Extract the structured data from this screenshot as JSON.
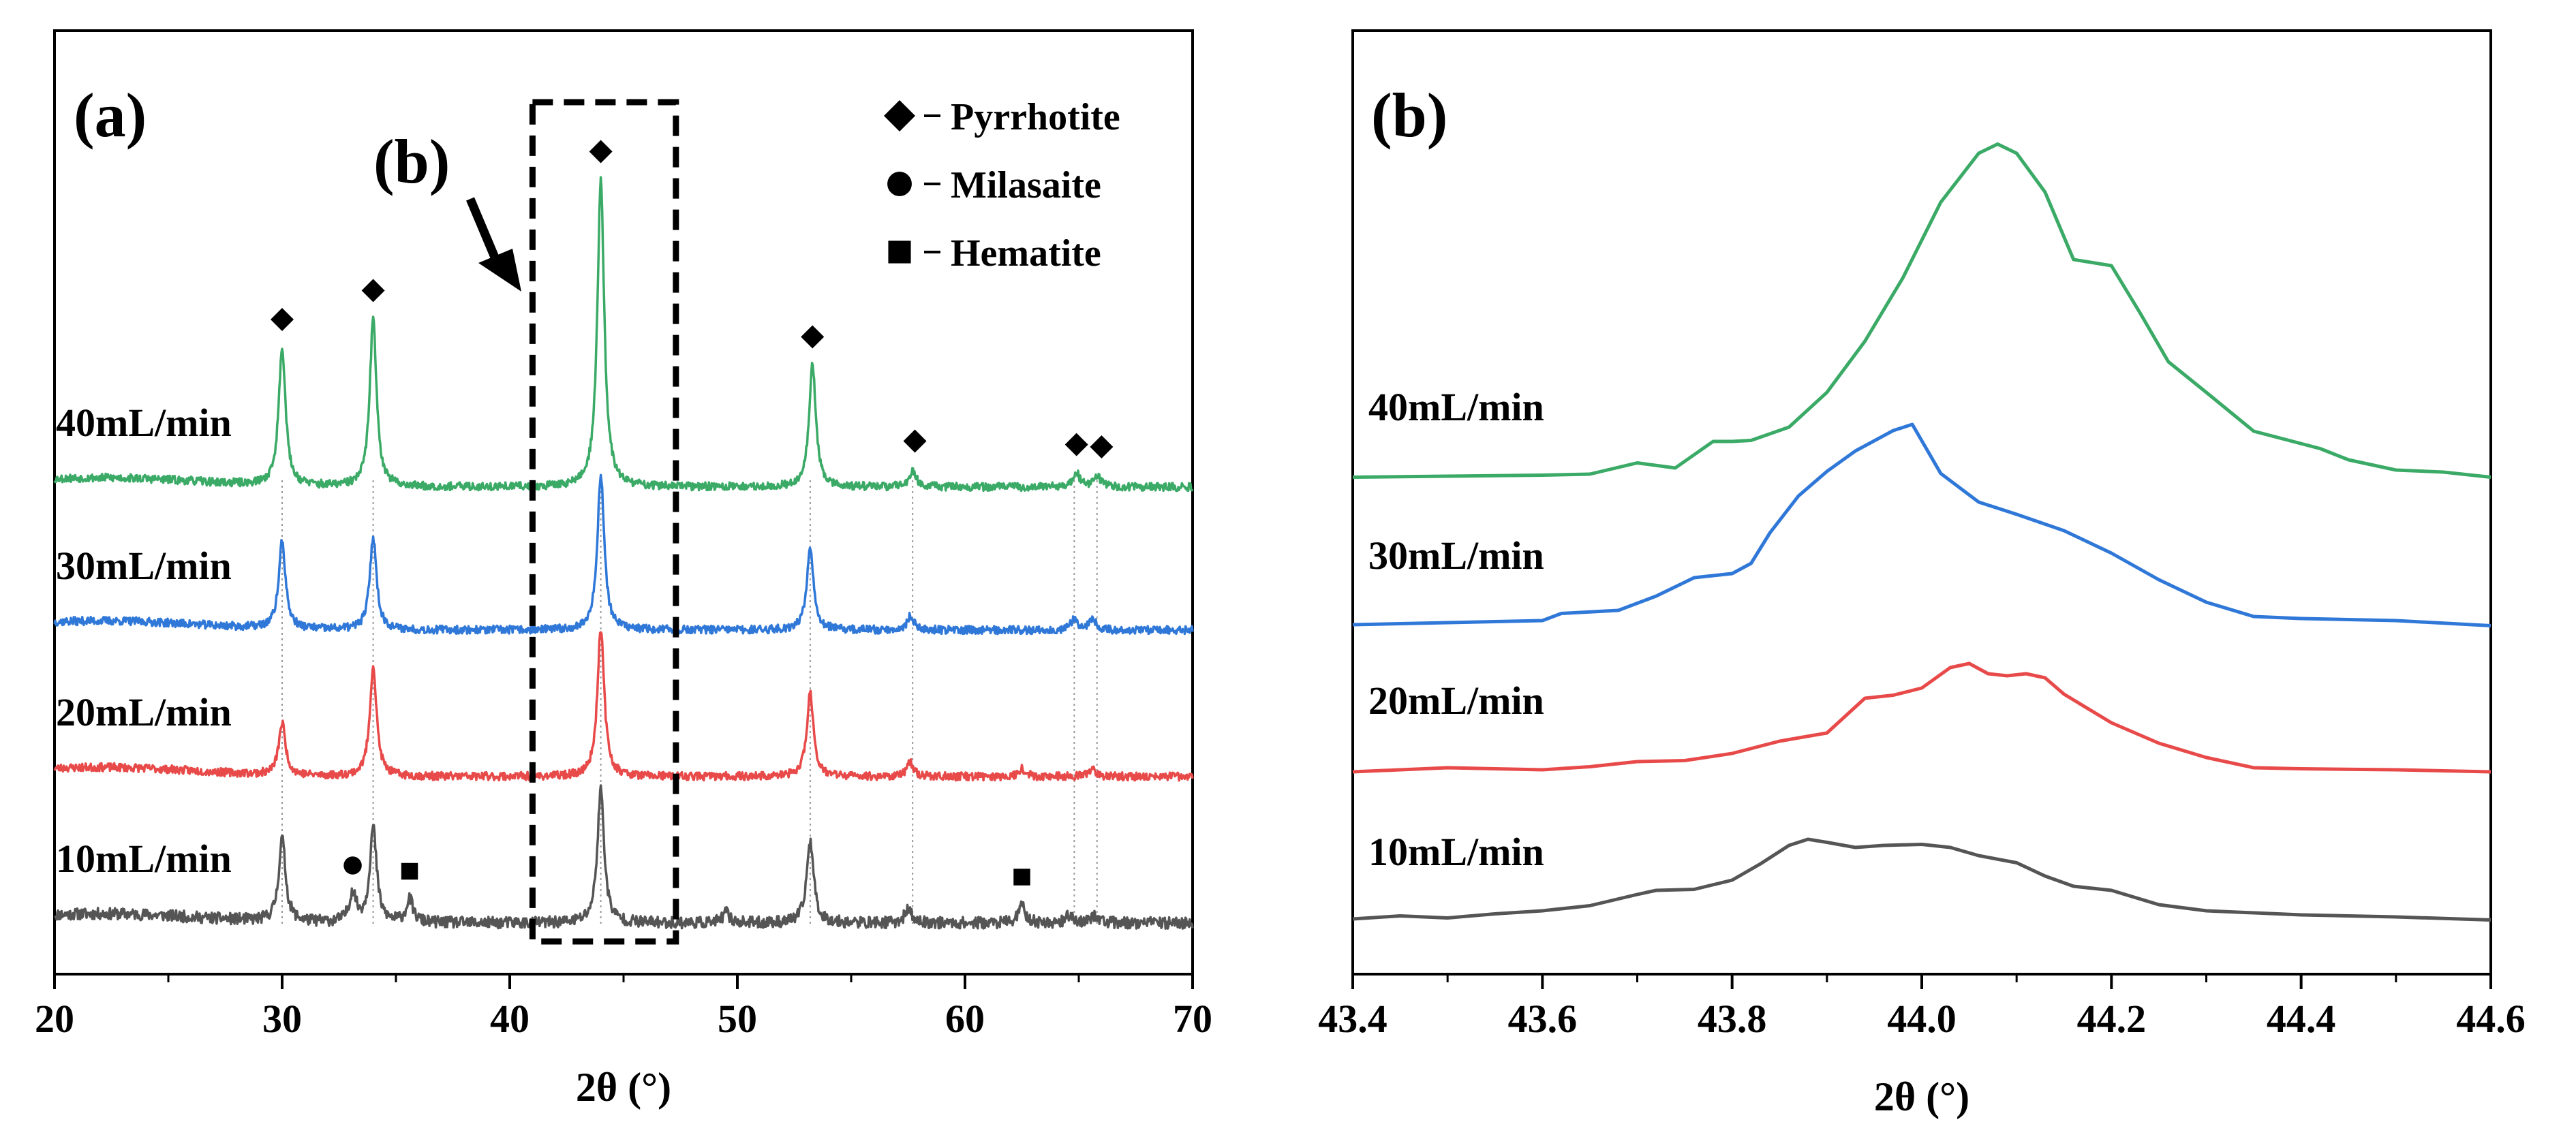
{
  "chart_data": [
    {
      "panel": "(a)",
      "type": "line",
      "xlabel": "2θ (°)",
      "ylabel": "",
      "xlim": [
        20,
        70
      ],
      "xticks": [
        20,
        30,
        40,
        50,
        60,
        70
      ],
      "inset_label": "(b)",
      "inset_box_x": [
        41,
        47.3
      ],
      "legend": [
        {
          "marker": "diamond",
          "label": "Pyrrhotite"
        },
        {
          "marker": "circle",
          "label": "Milasaite"
        },
        {
          "marker": "square",
          "label": "Hematite"
        }
      ],
      "pyrrhotite_peaks": [
        30.0,
        34.0,
        44.0,
        53.2,
        57.7,
        64.8,
        65.8
      ],
      "series": [
        {
          "name": "10mL/min",
          "color": "#555555",
          "baseline": 0,
          "noise": 0.1,
          "seed": 11,
          "peaks": [
            [
              30.0,
              0.72
            ],
            [
              33.1,
              0.25
            ],
            [
              34.0,
              0.82
            ],
            [
              35.6,
              0.2
            ],
            [
              44.0,
              1.15
            ],
            [
              49.5,
              0.09
            ],
            [
              53.2,
              0.72
            ],
            [
              57.5,
              0.12
            ],
            [
              62.5,
              0.15
            ],
            [
              64.6,
              0.07
            ],
            [
              65.7,
              0.07
            ]
          ],
          "markers": [
            {
              "x": 33.1,
              "symbol": "circle"
            },
            {
              "x": 35.6,
              "symbol": "square"
            },
            {
              "x": 62.5,
              "symbol": "square"
            }
          ]
        },
        {
          "name": "20mL/min",
          "color": "#e84a4a",
          "baseline": 1,
          "noise": 0.07,
          "seed": 23,
          "peaks": [
            [
              30.0,
              0.45
            ],
            [
              34.0,
              0.95
            ],
            [
              44.0,
              1.28
            ],
            [
              53.2,
              0.72
            ],
            [
              57.6,
              0.12
            ],
            [
              62.5,
              0.07
            ],
            [
              65.6,
              0.07
            ]
          ],
          "markers": []
        },
        {
          "name": "30mL/min",
          "color": "#2f78d8",
          "baseline": 2,
          "noise": 0.07,
          "seed": 37,
          "peaks": [
            [
              30.0,
              0.75
            ],
            [
              34.0,
              0.8
            ],
            [
              44.0,
              1.35
            ],
            [
              53.2,
              0.72
            ],
            [
              57.6,
              0.12
            ],
            [
              64.8,
              0.1
            ],
            [
              65.6,
              0.1
            ]
          ],
          "markers": []
        },
        {
          "name": "40mL/min",
          "color": "#3aaa66",
          "baseline": 3,
          "noise": 0.07,
          "seed": 53,
          "peaks": [
            [
              30.0,
              1.2
            ],
            [
              34.0,
              1.45
            ],
            [
              44.0,
              2.65
            ],
            [
              53.3,
              1.05
            ],
            [
              57.7,
              0.15
            ],
            [
              64.9,
              0.12
            ],
            [
              65.8,
              0.1
            ]
          ],
          "markers": [
            {
              "x": 30.0,
              "symbol": "diamond"
            },
            {
              "x": 34.0,
              "symbol": "diamond"
            },
            {
              "x": 44.0,
              "symbol": "diamond"
            },
            {
              "x": 53.3,
              "symbol": "diamond"
            },
            {
              "x": 57.8,
              "symbol": "diamond"
            },
            {
              "x": 64.9,
              "symbol": "diamond"
            },
            {
              "x": 66.0,
              "symbol": "diamond"
            }
          ]
        }
      ]
    },
    {
      "panel": "(b)",
      "type": "line",
      "xlabel": "2θ (°)",
      "ylabel": "",
      "xlim": [
        43.4,
        44.6
      ],
      "xticks": [
        43.4,
        43.6,
        43.8,
        44.0,
        44.2,
        44.4,
        44.6
      ],
      "series": [
        {
          "name": "10mL/min",
          "color": "#555555",
          "baseline": 0,
          "x": [
            43.4,
            43.45,
            43.5,
            43.55,
            43.6,
            43.65,
            43.7,
            43.72,
            43.76,
            43.8,
            43.83,
            43.86,
            43.88,
            43.9,
            43.93,
            43.96,
            44.0,
            44.03,
            44.06,
            44.1,
            44.13,
            44.16,
            44.2,
            44.25,
            44.3,
            44.4,
            44.5,
            44.6
          ],
          "y": [
            0.04,
            0.07,
            0.05,
            0.09,
            0.12,
            0.17,
            0.28,
            0.32,
            0.33,
            0.42,
            0.58,
            0.76,
            0.82,
            0.79,
            0.74,
            0.76,
            0.77,
            0.74,
            0.66,
            0.59,
            0.46,
            0.36,
            0.32,
            0.18,
            0.12,
            0.08,
            0.06,
            0.03
          ]
        },
        {
          "name": "20mL/min",
          "color": "#e84a4a",
          "baseline": 1,
          "x": [
            43.4,
            43.5,
            43.6,
            43.65,
            43.7,
            43.75,
            43.8,
            43.85,
            43.9,
            43.94,
            43.97,
            44.0,
            44.03,
            44.05,
            44.07,
            44.09,
            44.11,
            44.13,
            44.15,
            44.2,
            44.25,
            44.3,
            44.35,
            44.4,
            44.5,
            44.6
          ],
          "y": [
            0.0,
            0.04,
            0.02,
            0.05,
            0.1,
            0.11,
            0.18,
            0.3,
            0.38,
            0.72,
            0.75,
            0.82,
            1.02,
            1.06,
            0.96,
            0.94,
            0.96,
            0.92,
            0.76,
            0.48,
            0.28,
            0.14,
            0.04,
            0.03,
            0.02,
            0.0
          ]
        },
        {
          "name": "30mL/min",
          "color": "#2f78d8",
          "baseline": 2,
          "x": [
            43.4,
            43.5,
            43.6,
            43.62,
            43.68,
            43.72,
            43.76,
            43.8,
            43.82,
            43.84,
            43.87,
            43.9,
            43.93,
            43.97,
            43.99,
            44.02,
            44.06,
            44.1,
            44.15,
            44.2,
            44.25,
            44.3,
            44.35,
            44.4,
            44.5,
            44.6
          ],
          "y": [
            0.02,
            0.04,
            0.06,
            0.13,
            0.16,
            0.3,
            0.48,
            0.52,
            0.62,
            0.92,
            1.28,
            1.52,
            1.72,
            1.92,
            1.98,
            1.5,
            1.22,
            1.1,
            0.94,
            0.72,
            0.46,
            0.24,
            0.1,
            0.08,
            0.06,
            0.01
          ]
        },
        {
          "name": "40mL/min",
          "color": "#3aaa66",
          "baseline": 3,
          "x": [
            43.4,
            43.5,
            43.6,
            43.65,
            43.7,
            43.74,
            43.78,
            43.8,
            43.82,
            43.86,
            43.9,
            43.94,
            43.98,
            44.02,
            44.06,
            44.08,
            44.1,
            44.13,
            44.16,
            44.2,
            44.23,
            44.26,
            44.3,
            44.35,
            44.42,
            44.45,
            44.5,
            44.55,
            44.6
          ],
          "y": [
            0.01,
            0.02,
            0.03,
            0.04,
            0.15,
            0.1,
            0.36,
            0.36,
            0.37,
            0.5,
            0.84,
            1.34,
            1.96,
            2.7,
            3.18,
            3.27,
            3.18,
            2.8,
            2.14,
            2.08,
            1.62,
            1.14,
            0.84,
            0.46,
            0.29,
            0.18,
            0.08,
            0.06,
            0.01
          ]
        }
      ]
    }
  ]
}
